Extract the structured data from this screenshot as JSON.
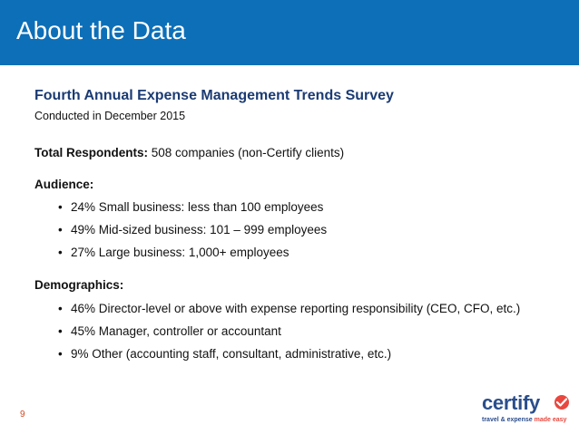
{
  "header": {
    "title": "About the Data",
    "background": "#0d6fb8"
  },
  "survey": {
    "title": "Fourth Annual Expense Management Trends Survey",
    "subtitle": "Conducted in December 2015"
  },
  "respondents": {
    "label": "Total Respondents:",
    "value": "508 companies (non-Certify clients)"
  },
  "audience": {
    "label": "Audience:",
    "items": [
      "24% Small business: less than 100 employees",
      "49% Mid-sized business: 101 – 999 employees",
      "27% Large business: 1,000+ employees"
    ]
  },
  "demographics": {
    "label": "Demographics:",
    "items": [
      "46% Director-level or above with expense reporting responsibility (CEO, CFO, etc.)",
      "45% Manager, controller or accountant",
      "9% Other (accounting staff, consultant, administrative, etc.)"
    ]
  },
  "bullet_glyph": "•",
  "page_number": "9",
  "logo": {
    "word": "certify",
    "tagline_main": "travel & expense ",
    "tagline_accent": "made easy",
    "icon": "check-circle-icon",
    "colors": {
      "word": "#2b4e8c",
      "accent": "#e8483f"
    }
  }
}
